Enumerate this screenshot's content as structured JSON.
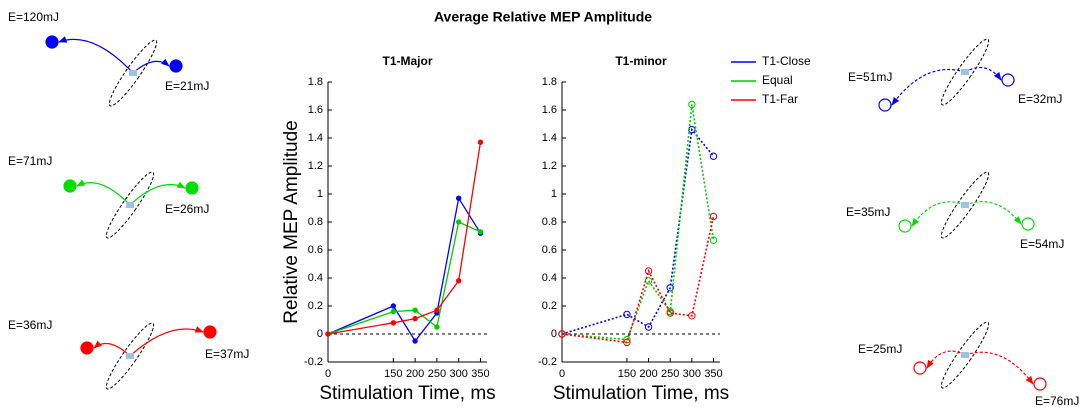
{
  "figure_title": "Average Relative MEP Amplitude",
  "diagrams": [
    {
      "labels": [
        "E=120mJ",
        "E=21mJ"
      ],
      "color": "#0000ff",
      "style": "filled"
    },
    {
      "labels": [
        "E=71mJ",
        "E=26mJ"
      ],
      "color": "#00dd00",
      "style": "filled"
    },
    {
      "labels": [
        "E=36mJ",
        "E=37mJ"
      ],
      "color": "#ff0000",
      "style": "filled"
    },
    {
      "labels": [
        "E=51mJ",
        "E=32mJ"
      ],
      "color": "#0000ff",
      "style": "hollow"
    },
    {
      "labels": [
        "E=35mJ",
        "E=54mJ"
      ],
      "color": "#00dd00",
      "style": "hollow"
    },
    {
      "labels": [
        "E=25mJ",
        "E=76mJ"
      ],
      "color": "#ff0000",
      "style": "hollow"
    }
  ],
  "chart_data": [
    {
      "type": "line",
      "title": "T1-Major",
      "x_label": "Stimulation Time, ms",
      "y_label": "Relative MEP Amplitude",
      "x": [
        0,
        150,
        200,
        250,
        300,
        350
      ],
      "xlim": [
        0,
        365
      ],
      "xticks": [
        0,
        150,
        200,
        250,
        300,
        350
      ],
      "ylim": [
        -0.2,
        1.8
      ],
      "yticks": [
        -0.2,
        0,
        0.2,
        0.4,
        0.6,
        0.8,
        1,
        1.2,
        1.4,
        1.6,
        1.8
      ],
      "reference_line": 0,
      "linestyle": "solid",
      "markers": "filled",
      "legend": "top-right",
      "series": [
        {
          "name": "T1-Close",
          "color": "#0000ff",
          "values": [
            0,
            0.2,
            -0.05,
            0.15,
            0.97,
            0.72
          ]
        },
        {
          "name": "Equal",
          "color": "#00cc00",
          "values": [
            0,
            0.16,
            0.17,
            0.05,
            0.8,
            0.73
          ]
        },
        {
          "name": "T1-Far",
          "color": "#ff0000",
          "values": [
            0,
            0.08,
            0.11,
            0.17,
            0.38,
            1.37
          ]
        }
      ]
    },
    {
      "type": "line",
      "title": "T1-minor",
      "x_label": "Stimulation Time, ms",
      "x": [
        0,
        150,
        200,
        250,
        300,
        350
      ],
      "xlim": [
        0,
        365
      ],
      "xticks": [
        0,
        150,
        200,
        250,
        300,
        350
      ],
      "ylim": [
        -0.2,
        1.8
      ],
      "yticks": [
        -0.2,
        0,
        0.2,
        0.4,
        0.6,
        0.8,
        1,
        1.2,
        1.4,
        1.6,
        1.8
      ],
      "reference_line": 0,
      "linestyle": "dotted",
      "markers": "hollow",
      "series": [
        {
          "color": "#0000ff",
          "values": [
            0,
            0.14,
            0.05,
            0.33,
            1.46,
            1.27
          ]
        },
        {
          "color": "#00cc00",
          "values": [
            0,
            -0.04,
            0.38,
            0.16,
            1.64,
            0.67
          ]
        },
        {
          "color": "#ff0000",
          "values": [
            0,
            -0.06,
            0.45,
            0.15,
            0.13,
            0.84
          ]
        }
      ]
    }
  ]
}
